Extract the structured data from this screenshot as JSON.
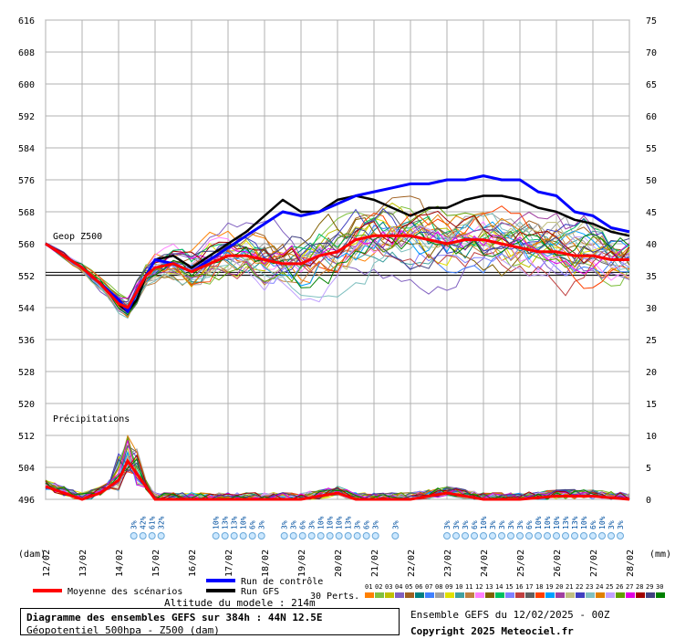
{
  "chart_data": {
    "type": "line",
    "labels": {
      "geop": "Geop Z500",
      "precip": "Précipitations",
      "unit_left": "(dam)",
      "unit_right": "(mm)"
    },
    "x_ticks": [
      "12/02",
      "13/02",
      "14/02",
      "15/02",
      "16/02",
      "17/02",
      "18/02",
      "19/02",
      "20/02",
      "21/02",
      "22/02",
      "23/02",
      "24/02",
      "25/02",
      "26/02",
      "27/02",
      "28/02"
    ],
    "x_range_hours": [
      0,
      384
    ],
    "geop_axis": {
      "ticks": [
        616,
        608,
        600,
        592,
        584,
        576,
        568,
        560,
        552,
        544,
        536,
        528,
        520,
        512,
        504,
        496
      ],
      "range": [
        496,
        616
      ],
      "unit": "dam"
    },
    "precip_axis": {
      "ticks": [
        75,
        70,
        65,
        60,
        55,
        50,
        45,
        40,
        35,
        30,
        25,
        20,
        15,
        10,
        5,
        0
      ],
      "range": [
        0,
        75
      ],
      "unit": "mm"
    },
    "reference_line": 552.5,
    "series": [
      {
        "name": "Moyenne des scénarios",
        "color": "#ff0000",
        "x": [
          0,
          12,
          24,
          36,
          48,
          54,
          60,
          66,
          72,
          84,
          96,
          108,
          120,
          132,
          144,
          156,
          168,
          180,
          192,
          204,
          216,
          228,
          240,
          252,
          264,
          276,
          288,
          300,
          312,
          324,
          336,
          348,
          360,
          372,
          384
        ],
        "y": [
          560,
          557,
          554,
          550,
          545,
          544,
          548,
          552,
          554,
          555,
          553,
          555,
          557,
          557,
          556,
          555,
          555,
          557,
          558,
          561,
          562,
          562,
          562,
          561,
          560,
          561,
          561,
          560,
          559,
          558,
          558,
          557,
          557,
          556,
          556
        ]
      },
      {
        "name": "Run de contrôle",
        "color": "#0000ff",
        "x": [
          0,
          12,
          24,
          36,
          48,
          54,
          60,
          66,
          72,
          84,
          96,
          108,
          120,
          132,
          144,
          156,
          168,
          180,
          192,
          204,
          216,
          228,
          240,
          252,
          264,
          276,
          288,
          300,
          312,
          324,
          336,
          348,
          360,
          372,
          384
        ],
        "y": [
          560,
          557,
          554,
          550,
          546,
          543,
          548,
          552,
          556,
          555,
          553,
          556,
          559,
          562,
          565,
          568,
          567,
          568,
          570,
          572,
          573,
          574,
          575,
          575,
          576,
          576,
          577,
          576,
          576,
          573,
          572,
          568,
          567,
          564,
          563
        ]
      },
      {
        "name": "Run GFS",
        "color": "#000000",
        "x": [
          0,
          12,
          24,
          36,
          48,
          54,
          60,
          66,
          72,
          84,
          96,
          108,
          120,
          132,
          144,
          156,
          168,
          180,
          192,
          204,
          216,
          228,
          240,
          252,
          264,
          276,
          288,
          300,
          312,
          324,
          336,
          348,
          360,
          372,
          384
        ],
        "y": [
          560,
          557,
          554,
          550,
          545,
          543,
          546,
          552,
          556,
          557,
          554,
          557,
          560,
          563,
          567,
          571,
          568,
          568,
          571,
          572,
          571,
          569,
          567,
          569,
          569,
          571,
          572,
          572,
          571,
          569,
          568,
          566,
          565,
          563,
          562
        ]
      }
    ],
    "precip_mean": {
      "x": [
        0,
        12,
        24,
        36,
        48,
        54,
        60,
        66,
        72,
        84,
        96,
        120,
        144,
        168,
        180,
        192,
        204,
        240,
        264,
        288,
        312,
        336,
        360,
        384
      ],
      "y": [
        2,
        1,
        0,
        1,
        3,
        6,
        4,
        2,
        0,
        0,
        0,
        0,
        0,
        0,
        0.5,
        1,
        0,
        0,
        1,
        0,
        0,
        0.5,
        0.5,
        0
      ]
    },
    "snow_labels": [
      {
        "h": 58,
        "v": "3%"
      },
      {
        "h": 64,
        "v": "42%"
      },
      {
        "h": 70,
        "v": "61%"
      },
      {
        "h": 76,
        "v": "32%"
      },
      {
        "h": 112,
        "v": "10%"
      },
      {
        "h": 118,
        "v": "13%"
      },
      {
        "h": 124,
        "v": "13%"
      },
      {
        "h": 130,
        "v": "10%"
      },
      {
        "h": 136,
        "v": "6%"
      },
      {
        "h": 142,
        "v": "3%"
      },
      {
        "h": 157,
        "v": "3%"
      },
      {
        "h": 163,
        "v": "3%"
      },
      {
        "h": 169,
        "v": "6%"
      },
      {
        "h": 175,
        "v": "3%"
      },
      {
        "h": 181,
        "v": "10%"
      },
      {
        "h": 187,
        "v": "10%"
      },
      {
        "h": 193,
        "v": "10%"
      },
      {
        "h": 199,
        "v": "13%"
      },
      {
        "h": 205,
        "v": "3%"
      },
      {
        "h": 211,
        "v": "6%"
      },
      {
        "h": 217,
        "v": "3%"
      },
      {
        "h": 230,
        "v": "3%"
      },
      {
        "h": 264,
        "v": "3%"
      },
      {
        "h": 270,
        "v": "3%"
      },
      {
        "h": 276,
        "v": "3%"
      },
      {
        "h": 282,
        "v": "6%"
      },
      {
        "h": 288,
        "v": "10%"
      },
      {
        "h": 294,
        "v": "3%"
      },
      {
        "h": 300,
        "v": "3%"
      },
      {
        "h": 306,
        "v": "3%"
      },
      {
        "h": 312,
        "v": "3%"
      },
      {
        "h": 318,
        "v": "6%"
      },
      {
        "h": 324,
        "v": "10%"
      },
      {
        "h": 330,
        "v": "10%"
      },
      {
        "h": 336,
        "v": "10%"
      },
      {
        "h": 342,
        "v": "13%"
      },
      {
        "h": 348,
        "v": "13%"
      },
      {
        "h": 354,
        "v": "10%"
      },
      {
        "h": 360,
        "v": "6%"
      },
      {
        "h": 366,
        "v": "10%"
      },
      {
        "h": 372,
        "v": "3%"
      },
      {
        "h": 378,
        "v": "3%"
      }
    ],
    "perturbations": {
      "label": "30 Perts.",
      "numbers": [
        "01",
        "02",
        "03",
        "04",
        "05",
        "06",
        "07",
        "08",
        "09",
        "10",
        "11",
        "12",
        "13",
        "14",
        "15",
        "16",
        "17",
        "18",
        "19",
        "20",
        "21",
        "22",
        "23",
        "24",
        "25",
        "26",
        "27",
        "28",
        "29",
        "30"
      ],
      "colors": [
        "#ff8000",
        "#80c040",
        "#c0c000",
        "#8060c0",
        "#a06020",
        "#008080",
        "#4080ff",
        "#a0a0a0",
        "#e0e000",
        "#40a0a0",
        "#c08040",
        "#ff80ff",
        "#806000",
        "#00c060",
        "#8080ff",
        "#c04040",
        "#606060",
        "#ff4000",
        "#00a0ff",
        "#a040a0",
        "#c0c080",
        "#4040c0",
        "#80c0c0",
        "#e08000",
        "#c0a0ff",
        "#60a000",
        "#e000e0",
        "#a00000",
        "#404080",
        "#008000"
      ]
    },
    "legend": [
      {
        "label": "Moyenne des scénarios",
        "color": "#ff0000"
      },
      {
        "label": "Run de contrôle",
        "color": "#0000ff"
      },
      {
        "label": "Run GFS",
        "color": "#000000"
      }
    ]
  },
  "footer": {
    "model_altitude": "Altitude du modele : 214m",
    "title": "Diagramme des ensembles GEFS sur 384h : 44N 12.5E",
    "subtitle": "Géopotentiel 500hpa - Z500 (dam)",
    "ensemble": "Ensemble GEFS du 12/02/2025 - 00Z",
    "copyright": "Copyright 2025 Meteociel.fr"
  }
}
